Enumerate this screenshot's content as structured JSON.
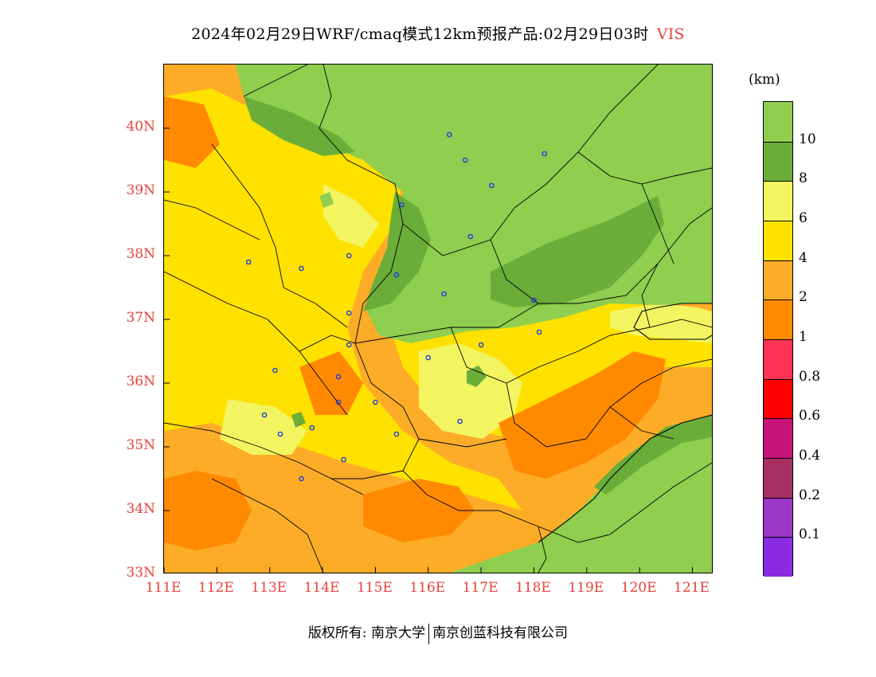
{
  "header": {
    "title": "2024年02月29日WRF/cmaq模式12km预报产品:02月29日03时",
    "variable": "VIS"
  },
  "axes": {
    "lat_labels": [
      "40N",
      "39N",
      "38N",
      "37N",
      "36N",
      "35N",
      "34N",
      "33N"
    ],
    "lon_labels": [
      "111E",
      "112E",
      "113E",
      "114E",
      "115E",
      "116E",
      "117E",
      "118E",
      "119E",
      "120E",
      "121E"
    ]
  },
  "legend": {
    "unit": "(km)",
    "levels": [
      "10",
      "8",
      "6",
      "4",
      "2",
      "1",
      "0.8",
      "0.6",
      "0.4",
      "0.2",
      "0.1"
    ],
    "colors": [
      "#8fce4e",
      "#6aad39",
      "#f2f560",
      "#ffe100",
      "#fdac28",
      "#ff8a00",
      "#ff3355",
      "#ff0000",
      "#c8137b",
      "#a72f62",
      "#9b38c7",
      "#8a2be2"
    ]
  },
  "footer": {
    "left": "版权所有: 南京大学",
    "right": "南京创蓝科技有限公司"
  },
  "chart_data": {
    "type": "heatmap",
    "title": "2024年02月29日WRF/cmaq模式12km预报产品:02月29日03时 VIS",
    "xlim": [
      111,
      121.4
    ],
    "ylim": [
      33,
      41
    ],
    "unit": "km",
    "levels": [
      0.1,
      0.2,
      0.4,
      0.6,
      0.8,
      1,
      2,
      4,
      6,
      8,
      10
    ],
    "stations": [
      [
        116.4,
        39.9
      ],
      [
        116.7,
        39.5
      ],
      [
        117.2,
        39.1
      ],
      [
        118.2,
        39.6
      ],
      [
        115.5,
        38.8
      ],
      [
        116.8,
        38.3
      ],
      [
        112.6,
        37.9
      ],
      [
        113.6,
        37.8
      ],
      [
        114.5,
        38.0
      ],
      [
        115.4,
        37.7
      ],
      [
        116.3,
        37.4
      ],
      [
        118.0,
        37.3
      ],
      [
        118.1,
        36.8
      ],
      [
        117.0,
        36.6
      ],
      [
        116.0,
        36.4
      ],
      [
        114.5,
        37.1
      ],
      [
        114.5,
        36.6
      ],
      [
        114.3,
        36.1
      ],
      [
        113.1,
        36.2
      ],
      [
        114.3,
        35.7
      ],
      [
        115.0,
        35.7
      ],
      [
        112.9,
        35.5
      ],
      [
        113.2,
        35.2
      ],
      [
        113.8,
        35.3
      ],
      [
        115.4,
        35.2
      ],
      [
        116.6,
        35.4
      ],
      [
        114.4,
        34.8
      ],
      [
        113.6,
        34.5
      ]
    ]
  }
}
